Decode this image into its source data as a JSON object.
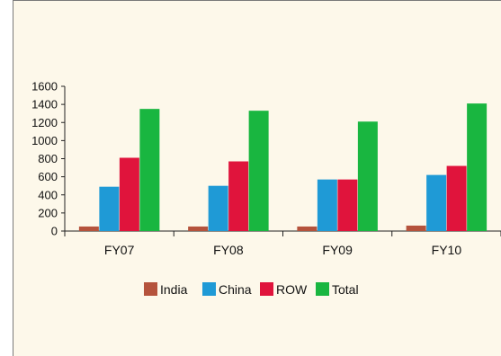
{
  "chart_data": {
    "type": "bar",
    "categories": [
      "FY07",
      "FY08",
      "FY09",
      "FY10"
    ],
    "series": [
      {
        "name": "India",
        "color": "#b5533c",
        "values": [
          50,
          50,
          50,
          60
        ]
      },
      {
        "name": "China",
        "color": "#1f9ad6",
        "values": [
          490,
          500,
          570,
          620
        ]
      },
      {
        "name": "ROW",
        "color": "#e0143c",
        "values": [
          810,
          770,
          570,
          720
        ]
      },
      {
        "name": "Total",
        "color": "#19b640",
        "values": [
          1350,
          1330,
          1210,
          1410
        ]
      }
    ],
    "ylim": [
      0,
      1600
    ],
    "yticks": [
      0,
      200,
      400,
      600,
      800,
      1000,
      1200,
      1400,
      1600
    ],
    "grid": false,
    "legend_position": "bottom"
  }
}
